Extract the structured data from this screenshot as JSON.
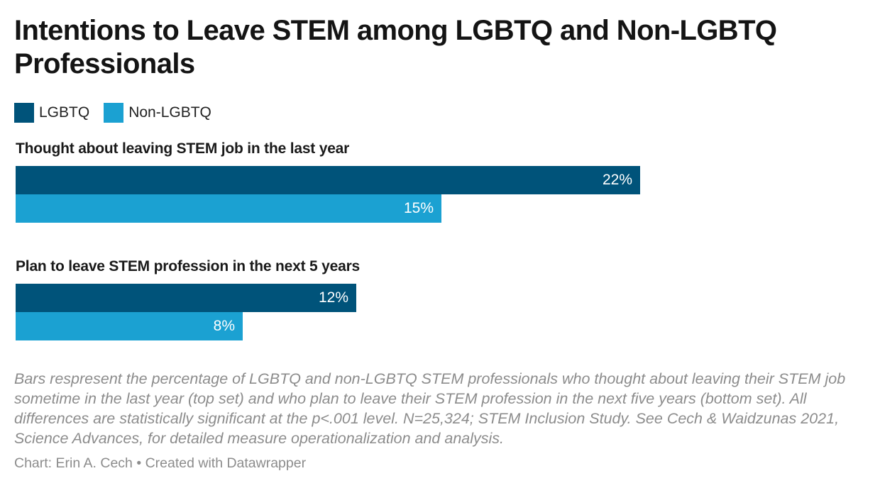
{
  "chart_data": {
    "type": "bar",
    "orientation": "horizontal",
    "title": "Intentions to Leave STEM among LGBTQ and Non-LGBTQ Professionals",
    "legend": [
      {
        "name": "LGBTQ",
        "color": "#00537a"
      },
      {
        "name": "Non-LGBTQ",
        "color": "#1ba1d2"
      }
    ],
    "categories": [
      "Thought about leaving STEM job in the last year",
      "Plan to leave STEM profession in the next 5 years"
    ],
    "series": [
      {
        "name": "LGBTQ",
        "color": "#00537a",
        "values": [
          22,
          12
        ],
        "labels": [
          "22%",
          "12%"
        ]
      },
      {
        "name": "Non-LGBTQ",
        "color": "#1ba1d2",
        "values": [
          15,
          8
        ],
        "labels": [
          "15%",
          "8%"
        ]
      }
    ],
    "value_unit": "%",
    "xlim": [
      0,
      31
    ],
    "notes": "Bars respresent the percentage of LGBTQ and non-LGBTQ STEM professionals who thought about leaving their STEM job sometime in the last year (top set) and who plan to leave their STEM profession in the next five years (bottom set). All differences are statistically significant at the p<.001 level. N=25,324; STEM Inclusion Study. See Cech & Waidzunas 2021, Science Advances, for detailed measure operationalization and analysis.",
    "byline": "Chart: Erin A. Cech • Created with Datawrapper"
  }
}
